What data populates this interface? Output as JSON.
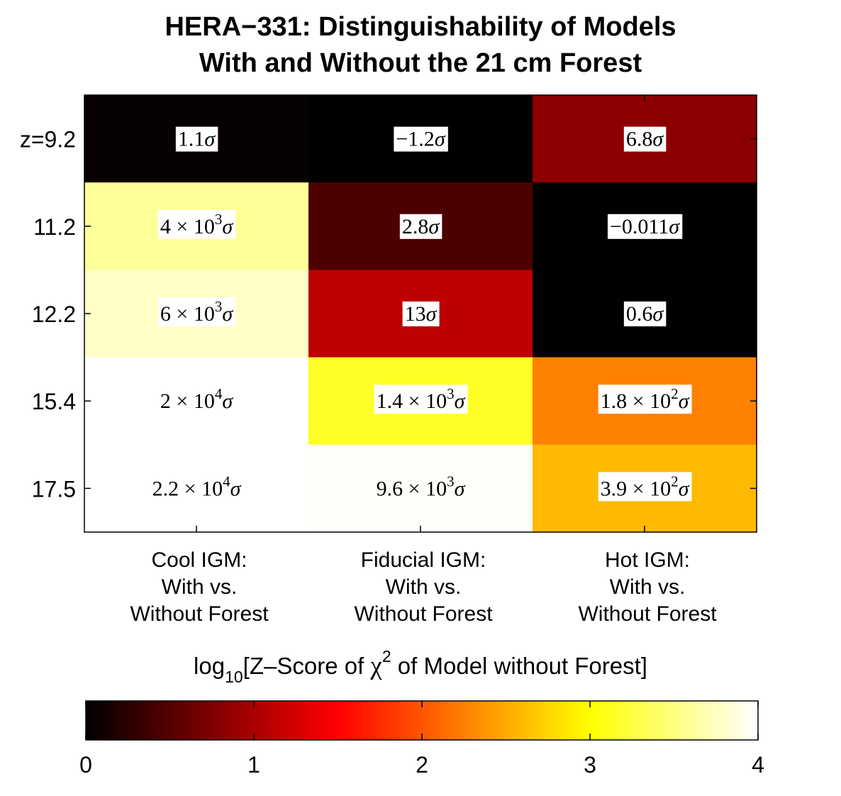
{
  "chart_data": {
    "type": "heatmap",
    "title_lines": [
      "HERA−331: Distinguishability of Models",
      "With and Without the 21 cm Forest"
    ],
    "columns": [
      [
        "Cool IGM:",
        "With vs.",
        "Without Forest"
      ],
      [
        "Fiducial IGM:",
        "With vs.",
        "Without Forest"
      ],
      [
        "Hot IGM:",
        "With vs.",
        "Without Forest"
      ]
    ],
    "rows": [
      "z=9.2",
      "11.2",
      "12.2",
      "15.4",
      "17.5"
    ],
    "cells": [
      [
        {
          "log10": 0.04,
          "label": {
            "m": "1.1",
            "e": ""
          },
          "box": true
        },
        {
          "log10": 0.0,
          "label": {
            "m": "−1.2",
            "e": ""
          },
          "box": true
        },
        {
          "log10": 0.83,
          "label": {
            "m": "6.8",
            "e": ""
          },
          "box": true
        }
      ],
      [
        {
          "log10": 3.6,
          "label": {
            "m": "4",
            "e": "3"
          },
          "box": true
        },
        {
          "log10": 0.45,
          "label": {
            "m": "2.8",
            "e": ""
          },
          "box": true
        },
        {
          "log10": 0.0,
          "label": {
            "m": "−0.011",
            "e": ""
          },
          "box": true
        }
      ],
      [
        {
          "log10": 3.78,
          "label": {
            "m": "6",
            "e": "3"
          },
          "box": true
        },
        {
          "log10": 1.11,
          "label": {
            "m": "13",
            "e": ""
          },
          "box": true
        },
        {
          "log10": 0.0,
          "label": {
            "m": "0.6",
            "e": ""
          },
          "box": true
        }
      ],
      [
        {
          "log10": 4.3,
          "label": {
            "m": "2",
            "e": "4"
          },
          "box": false
        },
        {
          "log10": 3.15,
          "label": {
            "m": "1.4",
            "e": "3"
          },
          "box": true
        },
        {
          "log10": 2.26,
          "label": {
            "m": "1.8",
            "e": "2"
          },
          "box": true
        }
      ],
      [
        {
          "log10": 4.34,
          "label": {
            "m": "2.2",
            "e": "4"
          },
          "box": false
        },
        {
          "log10": 3.98,
          "label": {
            "m": "9.6",
            "e": "3"
          },
          "box": false
        },
        {
          "log10": 2.59,
          "label": {
            "m": "3.9",
            "e": "2"
          },
          "box": true
        }
      ]
    ],
    "colorbar": {
      "colormap": "hot",
      "range": [
        0,
        4
      ],
      "ticks": [
        0,
        1,
        2,
        3,
        4
      ],
      "label": {
        "before": "log",
        "sub": "10",
        "middle": "[Z–Score of ",
        "chi": "χ",
        "sup": "2",
        "after": " of Model without Forest]"
      }
    },
    "sigma_symbol": "σ",
    "times_symbol": "×",
    "base": "10"
  }
}
